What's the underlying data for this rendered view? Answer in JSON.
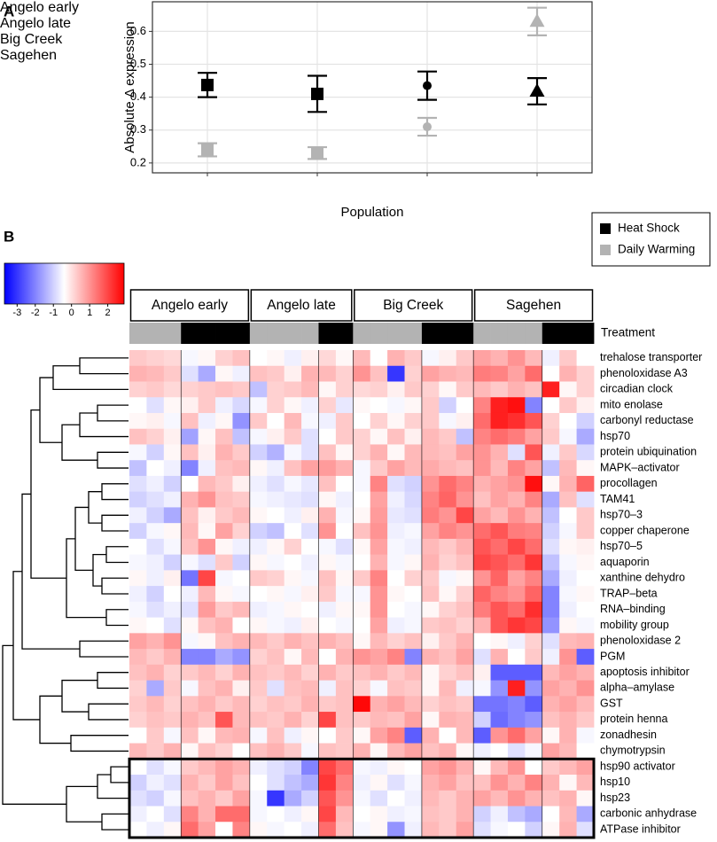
{
  "chart_data": [
    {
      "type": "errorpoint",
      "panel": "A",
      "x_label": "Population",
      "y_label": "Absolute Δ expression",
      "categories": [
        "Angelo\nearly",
        "Angelo\nlate",
        "Big Creek",
        "Sagehen"
      ],
      "markers": [
        "square",
        "square",
        "circle",
        "triangle"
      ],
      "ylim": [
        0.17,
        0.69
      ],
      "yticks": [
        0.2,
        0.3,
        0.4,
        0.5,
        0.6
      ],
      "grid": true,
      "legend": "right",
      "series": [
        {
          "name": "Heat Shock",
          "color": "#000000",
          "values": [
            0.437,
            0.41,
            0.435,
            0.418
          ],
          "errors": [
            0.037,
            0.055,
            0.043,
            0.04
          ]
        },
        {
          "name": "Daily Warming",
          "color": "#b3b3b3",
          "values": [
            0.24,
            0.23,
            0.31,
            0.63
          ],
          "errors": [
            0.02,
            0.018,
            0.027,
            0.042
          ]
        }
      ]
    },
    {
      "type": "heatmap",
      "panel": "B",
      "treatment_label": "Treatment",
      "groups": [
        {
          "name": "Angelo early",
          "treatments": [
            1,
            1,
            1,
            0,
            0,
            0,
            0
          ]
        },
        {
          "name": "Angelo late",
          "treatments": [
            1,
            1,
            1,
            1,
            0,
            0
          ]
        },
        {
          "name": "Big Creek",
          "treatments": [
            1,
            1,
            1,
            1,
            0,
            0,
            0
          ]
        },
        {
          "name": "Sagehen",
          "treatments": [
            1,
            1,
            1,
            1,
            0,
            0,
            0
          ]
        }
      ],
      "colorbar": {
        "clim": [
          -3.7,
          2.9
        ],
        "ticks": [
          -3,
          -2,
          -1,
          0,
          1,
          2
        ],
        "colors": [
          "#0000ff",
          "#ffffff",
          "#ff0000"
        ]
      },
      "highlight_rows": [
        26,
        30
      ],
      "rows": [
        {
          "name": "trehalose transporter",
          "values": [
            0.3,
            0.2,
            0.1,
            -0.5,
            -0.3,
            0.2,
            0.4,
            -0.4,
            -0.3,
            -0.6,
            -0.2,
            0.1,
            -0.3,
            0.5,
            -0.4,
            0.6,
            0.3,
            -0.5,
            -0.2,
            0.3,
            0.8,
            0.6,
            1.0,
            0.5,
            -0.6,
            0.3,
            -0.4
          ]
        },
        {
          "name": "phenoloxidase A3",
          "values": [
            0.6,
            0.5,
            0.3,
            -0.8,
            -1.5,
            -0.3,
            -0.6,
            0.4,
            0.3,
            -0.2,
            0.6,
            0.5,
            0.2,
            1.0,
            0.4,
            -3.0,
            0.2,
            0.8,
            0.6,
            0.5,
            1.3,
            1.2,
            0.8,
            1.5,
            -0.4,
            0.6,
            0.2
          ]
        },
        {
          "name": "circadian clock",
          "values": [
            0.2,
            0.3,
            0.1,
            0.2,
            0.3,
            0.4,
            0.3,
            -1.2,
            0.2,
            0.3,
            0.5,
            -0.3,
            0.2,
            0.1,
            0.2,
            -0.2,
            0.3,
            0.2,
            -0.3,
            0.3,
            0.5,
            0.3,
            0.6,
            0.4,
            2.5,
            -0.3,
            0.2
          ]
        },
        {
          "name": "mito enolase",
          "values": [
            -0.4,
            -0.8,
            -0.3,
            -0.2,
            0.3,
            -0.6,
            -0.9,
            -0.5,
            0.2,
            -0.3,
            -0.6,
            0.2,
            -0.7,
            -0.3,
            -0.4,
            -0.5,
            -0.3,
            0.3,
            -1.0,
            -0.4,
            1.2,
            2.5,
            2.7,
            -2.0,
            -0.4,
            0.3,
            -0.2
          ]
        },
        {
          "name": "carbonyl reductase",
          "values": [
            -0.3,
            -0.2,
            -0.5,
            0.4,
            -0.6,
            -0.3,
            -1.8,
            0.3,
            -0.4,
            0.5,
            -0.5,
            -0.6,
            0.3,
            -0.4,
            0.2,
            -0.3,
            0.2,
            0.3,
            -0.5,
            -0.2,
            1.5,
            2.5,
            2.3,
            1.8,
            0.2,
            -0.4,
            -1.0
          ]
        },
        {
          "name": "hsp70",
          "values": [
            0.4,
            0.2,
            -0.2,
            -1.6,
            -0.3,
            0.4,
            -1.2,
            -0.5,
            -0.2,
            0.3,
            -0.8,
            -0.4,
            0.3,
            0.2,
            -0.3,
            0.4,
            -0.2,
            0.5,
            0.3,
            -1.2,
            1.2,
            1.5,
            1.3,
            0.8,
            0.3,
            -0.5,
            -1.5
          ]
        },
        {
          "name": "protein ubiquination",
          "values": [
            -0.5,
            -1.0,
            -0.3,
            0.4,
            -0.2,
            0.6,
            0.3,
            -1.0,
            -1.4,
            -0.5,
            -0.8,
            0.4,
            -0.3,
            0.2,
            0.6,
            -0.3,
            0.5,
            0.5,
            0.4,
            0.8,
            1.0,
            0.6,
            -0.8,
            1.8,
            -0.6,
            0.3,
            -0.9
          ]
        },
        {
          "name": "MAPK–activator",
          "values": [
            -1.2,
            -0.4,
            -0.6,
            -2.0,
            -0.6,
            0.4,
            0.5,
            -0.3,
            -0.6,
            0.4,
            0.8,
            0.9,
            0.6,
            -0.5,
            0.3,
            0.8,
            0.5,
            0.7,
            0.5,
            0.4,
            1.0,
            0.5,
            1.2,
            0.8,
            -1.2,
            0.5,
            -0.3
          ]
        },
        {
          "name": "procollagen",
          "values": [
            -0.8,
            -0.6,
            -1.0,
            -0.4,
            0.5,
            0.3,
            -0.2,
            -0.6,
            -0.8,
            -0.5,
            -0.7,
            0.4,
            -0.4,
            -0.5,
            1.2,
            -0.8,
            -1.0,
            1.0,
            1.5,
            1.2,
            0.6,
            0.8,
            1.0,
            2.7,
            -0.3,
            0.6,
            1.6
          ]
        },
        {
          "name": "TAM41",
          "values": [
            -1.0,
            -0.8,
            -0.6,
            0.6,
            1.0,
            0.4,
            0.3,
            -0.5,
            -0.6,
            -0.7,
            -0.8,
            -0.3,
            -0.6,
            -0.4,
            0.8,
            -0.6,
            -0.9,
            1.2,
            1.6,
            1.0,
            0.4,
            0.8,
            0.6,
            1.2,
            -1.5,
            0.4,
            -0.8
          ]
        },
        {
          "name": "hsp70–3",
          "values": [
            -0.6,
            -1.0,
            -1.5,
            0.4,
            -0.2,
            0.3,
            0.5,
            -0.3,
            -0.4,
            -0.6,
            -0.2,
            0.6,
            -0.5,
            -0.3,
            0.9,
            -0.7,
            -0.8,
            1.3,
            1.0,
            2.0,
            0.8,
            0.5,
            1.0,
            0.6,
            -1.2,
            -0.4,
            0.3
          ]
        },
        {
          "name": "copper chaperone",
          "values": [
            -1.0,
            -0.5,
            -0.3,
            0.5,
            -0.3,
            0.8,
            0.2,
            -1.0,
            -1.2,
            -0.4,
            -0.8,
            1.0,
            -0.4,
            0.4,
            1.0,
            -0.6,
            -0.5,
            0.8,
            1.2,
            1.0,
            1.5,
            1.8,
            1.3,
            1.2,
            -1.0,
            -0.5,
            0.3
          ]
        },
        {
          "name": "hsp70–5",
          "values": [
            -0.4,
            -0.8,
            -0.5,
            0.4,
            1.0,
            -0.3,
            -0.6,
            -0.6,
            -0.3,
            0.2,
            -0.4,
            -0.5,
            -0.8,
            -0.3,
            0.8,
            -0.5,
            -0.6,
            0.5,
            0.3,
            0.6,
            1.8,
            1.5,
            2.0,
            1.5,
            -0.8,
            -0.3,
            -0.2
          ]
        },
        {
          "name": "aquaporin",
          "values": [
            -0.5,
            -0.6,
            -1.0,
            -0.5,
            -0.8,
            0.3,
            -1.0,
            -0.3,
            -0.5,
            -0.4,
            -0.6,
            -0.3,
            -0.5,
            -0.4,
            0.6,
            -0.5,
            -0.3,
            0.6,
            0.2,
            0.4,
            2.0,
            1.8,
            1.5,
            2.2,
            -1.2,
            -0.5,
            -0.3
          ]
        },
        {
          "name": "xanthine dehydro",
          "values": [
            -0.3,
            -0.6,
            -0.2,
            -2.2,
            2.0,
            -0.5,
            -0.4,
            0.3,
            0.2,
            -0.3,
            -0.5,
            0.4,
            -0.3,
            0.3,
            1.2,
            -0.4,
            0.2,
            0.3,
            -0.5,
            -0.3,
            1.0,
            1.6,
            0.8,
            1.2,
            -1.5,
            -0.6,
            -0.4
          ]
        },
        {
          "name": "TRAP–beta",
          "values": [
            -0.6,
            -1.0,
            -0.4,
            -0.6,
            0.5,
            -0.3,
            -0.5,
            -0.4,
            -0.3,
            -0.5,
            -0.2,
            0.3,
            -0.5,
            -0.5,
            1.0,
            -0.3,
            -0.4,
            0.4,
            -0.3,
            0.2,
            1.6,
            1.2,
            1.0,
            1.6,
            -2.0,
            -0.5,
            -0.3
          ]
        },
        {
          "name": "RNA–binding",
          "values": [
            -0.5,
            -0.8,
            -0.6,
            -0.8,
            0.9,
            0.3,
            0.5,
            -0.6,
            -0.5,
            -0.3,
            -0.4,
            -0.6,
            -0.3,
            -0.3,
            1.0,
            -0.4,
            -0.5,
            -0.3,
            0.2,
            0.4,
            1.3,
            1.8,
            1.5,
            2.3,
            -2.0,
            -0.6,
            -0.4
          ]
        },
        {
          "name": "mobility group",
          "values": [
            -0.3,
            -0.4,
            -0.8,
            -0.3,
            0.4,
            0.6,
            -0.4,
            -0.3,
            -0.5,
            -0.6,
            -0.2,
            -0.4,
            -0.5,
            -0.4,
            0.8,
            -0.6,
            -0.5,
            0.3,
            0.4,
            0.2,
            0.6,
            1.8,
            2.2,
            2.0,
            -1.8,
            -0.3,
            -0.5
          ]
        },
        {
          "name": "phenoloxidase 2",
          "values": [
            0.8,
            0.6,
            1.0,
            -0.5,
            -0.3,
            0.4,
            0.6,
            0.5,
            0.3,
            0.6,
            0.4,
            0.6,
            0.4,
            -0.3,
            0.5,
            0.2,
            0.4,
            -0.2,
            0.3,
            0.6,
            -0.4,
            -0.3,
            -0.6,
            0.2,
            -0.8,
            0.5,
            0.6
          ]
        },
        {
          "name": "PGM",
          "values": [
            0.5,
            0.3,
            0.6,
            -2.0,
            -2.0,
            -1.5,
            -1.8,
            0.2,
            0.4,
            -0.3,
            0.5,
            -0.4,
            0.6,
            1.0,
            0.8,
            1.2,
            -2.0,
            0.6,
            0.4,
            0.8,
            -0.8,
            0.6,
            -0.4,
            0.3,
            -0.6,
            1.0,
            -2.5
          ]
        },
        {
          "name": "apoptosis inhibitor",
          "values": [
            0.4,
            0.6,
            0.2,
            0.3,
            0.5,
            0.2,
            0.6,
            0.4,
            0.3,
            0.5,
            0.2,
            0.6,
            0.3,
            0.4,
            0.6,
            0.3,
            0.5,
            -0.3,
            0.2,
            0.4,
            -0.2,
            -2.5,
            -2.5,
            -2.5,
            0.5,
            0.8,
            0.6
          ]
        },
        {
          "name": "alpha–amylase",
          "values": [
            0.2,
            -1.5,
            0.3,
            -0.5,
            0.4,
            0.6,
            -0.2,
            0.3,
            -0.8,
            0.4,
            0.5,
            -0.6,
            0.4,
            0.2,
            -0.5,
            0.4,
            0.3,
            -0.3,
            0.5,
            -0.6,
            -0.5,
            -1.8,
            2.5,
            -1.8,
            0.8,
            0.6,
            1.0
          ]
        },
        {
          "name": "GST",
          "values": [
            0.3,
            0.5,
            0.2,
            0.4,
            0.6,
            0.3,
            0.5,
            0.2,
            0.4,
            0.3,
            0.6,
            0.3,
            0.4,
            2.8,
            0.6,
            0.8,
            0.5,
            0.2,
            0.4,
            0.3,
            -2.2,
            -2.2,
            -2.0,
            -2.5,
            0.6,
            0.8,
            0.5
          ]
        },
        {
          "name": "protein henna",
          "values": [
            0.2,
            0.4,
            0.3,
            0.6,
            0.4,
            1.8,
            0.5,
            0.4,
            0.3,
            0.6,
            0.2,
            2.0,
            0.4,
            0.3,
            0.5,
            0.4,
            0.8,
            -0.3,
            0.6,
            0.5,
            -1.0,
            -2.3,
            -2.0,
            -1.8,
            0.4,
            0.6,
            0.3
          ]
        },
        {
          "name": "zonadhesin",
          "values": [
            -0.4,
            0.3,
            -0.5,
            0.4,
            -0.3,
            0.5,
            0.6,
            -0.5,
            0.4,
            -0.6,
            -0.3,
            -0.4,
            0.3,
            -0.3,
            0.8,
            1.2,
            -2.5,
            0.6,
            -0.4,
            0.5,
            -2.5,
            1.0,
            1.5,
            0.8,
            -0.3,
            0.6,
            -0.5
          ]
        },
        {
          "name": "chymotrypsin",
          "values": [
            0.5,
            0.3,
            0.6,
            -0.3,
            0.4,
            0.2,
            -0.4,
            0.4,
            0.6,
            0.3,
            -0.5,
            0.4,
            0.3,
            0.6,
            -0.3,
            0.5,
            0.8,
            0.4,
            0.6,
            -0.3,
            -0.6,
            -0.4,
            -0.8,
            -0.5,
            0.8,
            0.5,
            -0.4
          ]
        },
        {
          "name": "hsp90 activator",
          "values": [
            -0.4,
            -0.8,
            -0.5,
            0.3,
            0.5,
            0.8,
            0.6,
            -0.6,
            -0.8,
            -1.0,
            -2.0,
            2.0,
            1.5,
            -0.5,
            -0.6,
            -0.3,
            -0.4,
            0.8,
            1.0,
            0.6,
            -0.3,
            0.5,
            1.0,
            -0.4,
            0.3,
            0.5,
            0.8
          ]
        },
        {
          "name": "hsp10",
          "values": [
            -1.0,
            -0.6,
            -0.8,
            0.6,
            0.3,
            0.8,
            0.4,
            -0.4,
            -0.8,
            -1.2,
            -1.5,
            2.2,
            1.2,
            -0.6,
            -0.3,
            -0.8,
            -0.5,
            0.6,
            0.8,
            0.4,
            0.4,
            1.0,
            0.6,
            1.2,
            0.6,
            -0.3,
            0.5
          ]
        },
        {
          "name": "hsp23",
          "values": [
            -0.8,
            -1.0,
            -0.5,
            0.4,
            0.6,
            0.3,
            0.8,
            -0.5,
            -3.0,
            -1.5,
            -1.0,
            1.8,
            1.0,
            -0.5,
            -0.8,
            -0.4,
            -0.6,
            0.5,
            0.3,
            0.6,
            0.8,
            0.5,
            1.0,
            0.6,
            0.4,
            0.6,
            -0.3
          ]
        },
        {
          "name": "carbonic anhydrase",
          "values": [
            -0.6,
            -0.4,
            -0.8,
            1.2,
            0.6,
            1.5,
            1.5,
            -0.5,
            -0.4,
            -0.6,
            -0.3,
            2.0,
            0.5,
            -0.4,
            -0.3,
            -0.6,
            -0.5,
            0.4,
            0.3,
            0.6,
            -1.0,
            -0.6,
            -1.2,
            -1.5,
            -0.4,
            0.5,
            -1.5
          ]
        },
        {
          "name": "ATPase inhibitor",
          "values": [
            -0.4,
            -0.6,
            -0.3,
            1.5,
            0.8,
            -0.4,
            1.2,
            -0.3,
            -0.5,
            -0.4,
            -0.6,
            1.5,
            0.4,
            -0.5,
            -0.3,
            -1.8,
            -0.6,
            0.5,
            0.3,
            0.8,
            -0.8,
            -0.5,
            -0.4,
            -1.0,
            -0.3,
            0.6,
            -0.8
          ]
        }
      ]
    }
  ]
}
